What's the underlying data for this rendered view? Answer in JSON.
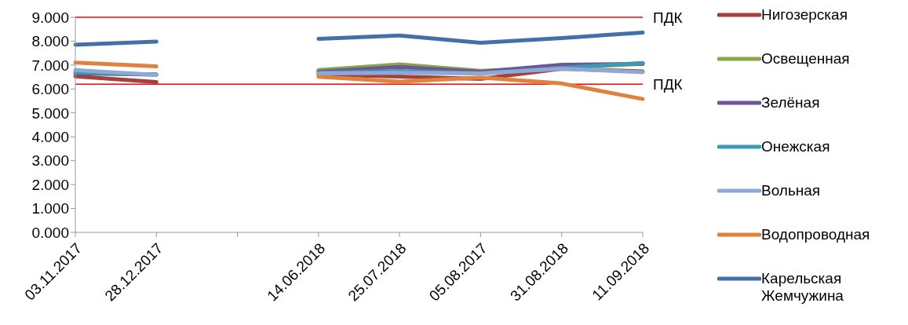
{
  "chart_data": {
    "type": "line",
    "categories": [
      "03.11.2017",
      "28.12.2017",
      null,
      "14.06.2018",
      "25.07.2018",
      "05.08.2017",
      "31.08.2018",
      "11.09.2018"
    ],
    "series": [
      {
        "name": "Нигозерская",
        "color": "#a5413c",
        "values": [
          6.53,
          6.29,
          null,
          6.6,
          6.52,
          6.42,
          6.85,
          6.73
        ]
      },
      {
        "name": "Освещенная",
        "color": "#8aa64a",
        "values": [
          null,
          null,
          null,
          6.79,
          7.03,
          6.76,
          6.9,
          7.05
        ]
      },
      {
        "name": "Зелёная",
        "color": "#6f5597",
        "values": [
          6.65,
          6.6,
          null,
          6.72,
          6.92,
          6.72,
          7.01,
          7.05
        ]
      },
      {
        "name": "Онежская",
        "color": "#3a9bb5",
        "values": [
          6.7,
          6.6,
          null,
          6.68,
          6.75,
          6.65,
          6.88,
          7.09
        ]
      },
      {
        "name": "Вольная",
        "color": "#8fa9d4",
        "values": [
          6.79,
          6.59,
          null,
          6.65,
          6.68,
          6.65,
          6.85,
          6.7
        ]
      },
      {
        "name": "Водопроводная",
        "color": "#e0823d",
        "values": [
          7.1,
          6.95,
          null,
          6.51,
          6.31,
          6.48,
          6.23,
          5.58
        ]
      },
      {
        "name": "Карельская Жемчужина",
        "color": "#4470a8",
        "values": [
          7.85,
          7.98,
          null,
          8.1,
          8.24,
          7.93,
          8.13,
          8.36
        ]
      }
    ],
    "ylim": [
      0,
      9
    ],
    "yticks": [
      {
        "value": 0,
        "label": "0.000"
      },
      {
        "value": 1,
        "label": "1.000"
      },
      {
        "value": 2,
        "label": "2.000"
      },
      {
        "value": 3,
        "label": "3.000"
      },
      {
        "value": 4,
        "label": "4.000"
      },
      {
        "value": 5,
        "label": "5.000"
      },
      {
        "value": 6,
        "label": "6.000"
      },
      {
        "value": 7,
        "label": "7.000"
      },
      {
        "value": 8,
        "label": "8.000"
      },
      {
        "value": 9,
        "label": "9.000"
      }
    ],
    "ref_lines": [
      {
        "axis": "y",
        "value": 9,
        "label": "ПДК",
        "color": "#ff0000"
      },
      {
        "axis": "y",
        "value": 6.2,
        "label": "ПДК",
        "color": "#ff0000"
      }
    ],
    "grid": false,
    "legend": "right",
    "marker": "none",
    "line_style": "solid"
  }
}
